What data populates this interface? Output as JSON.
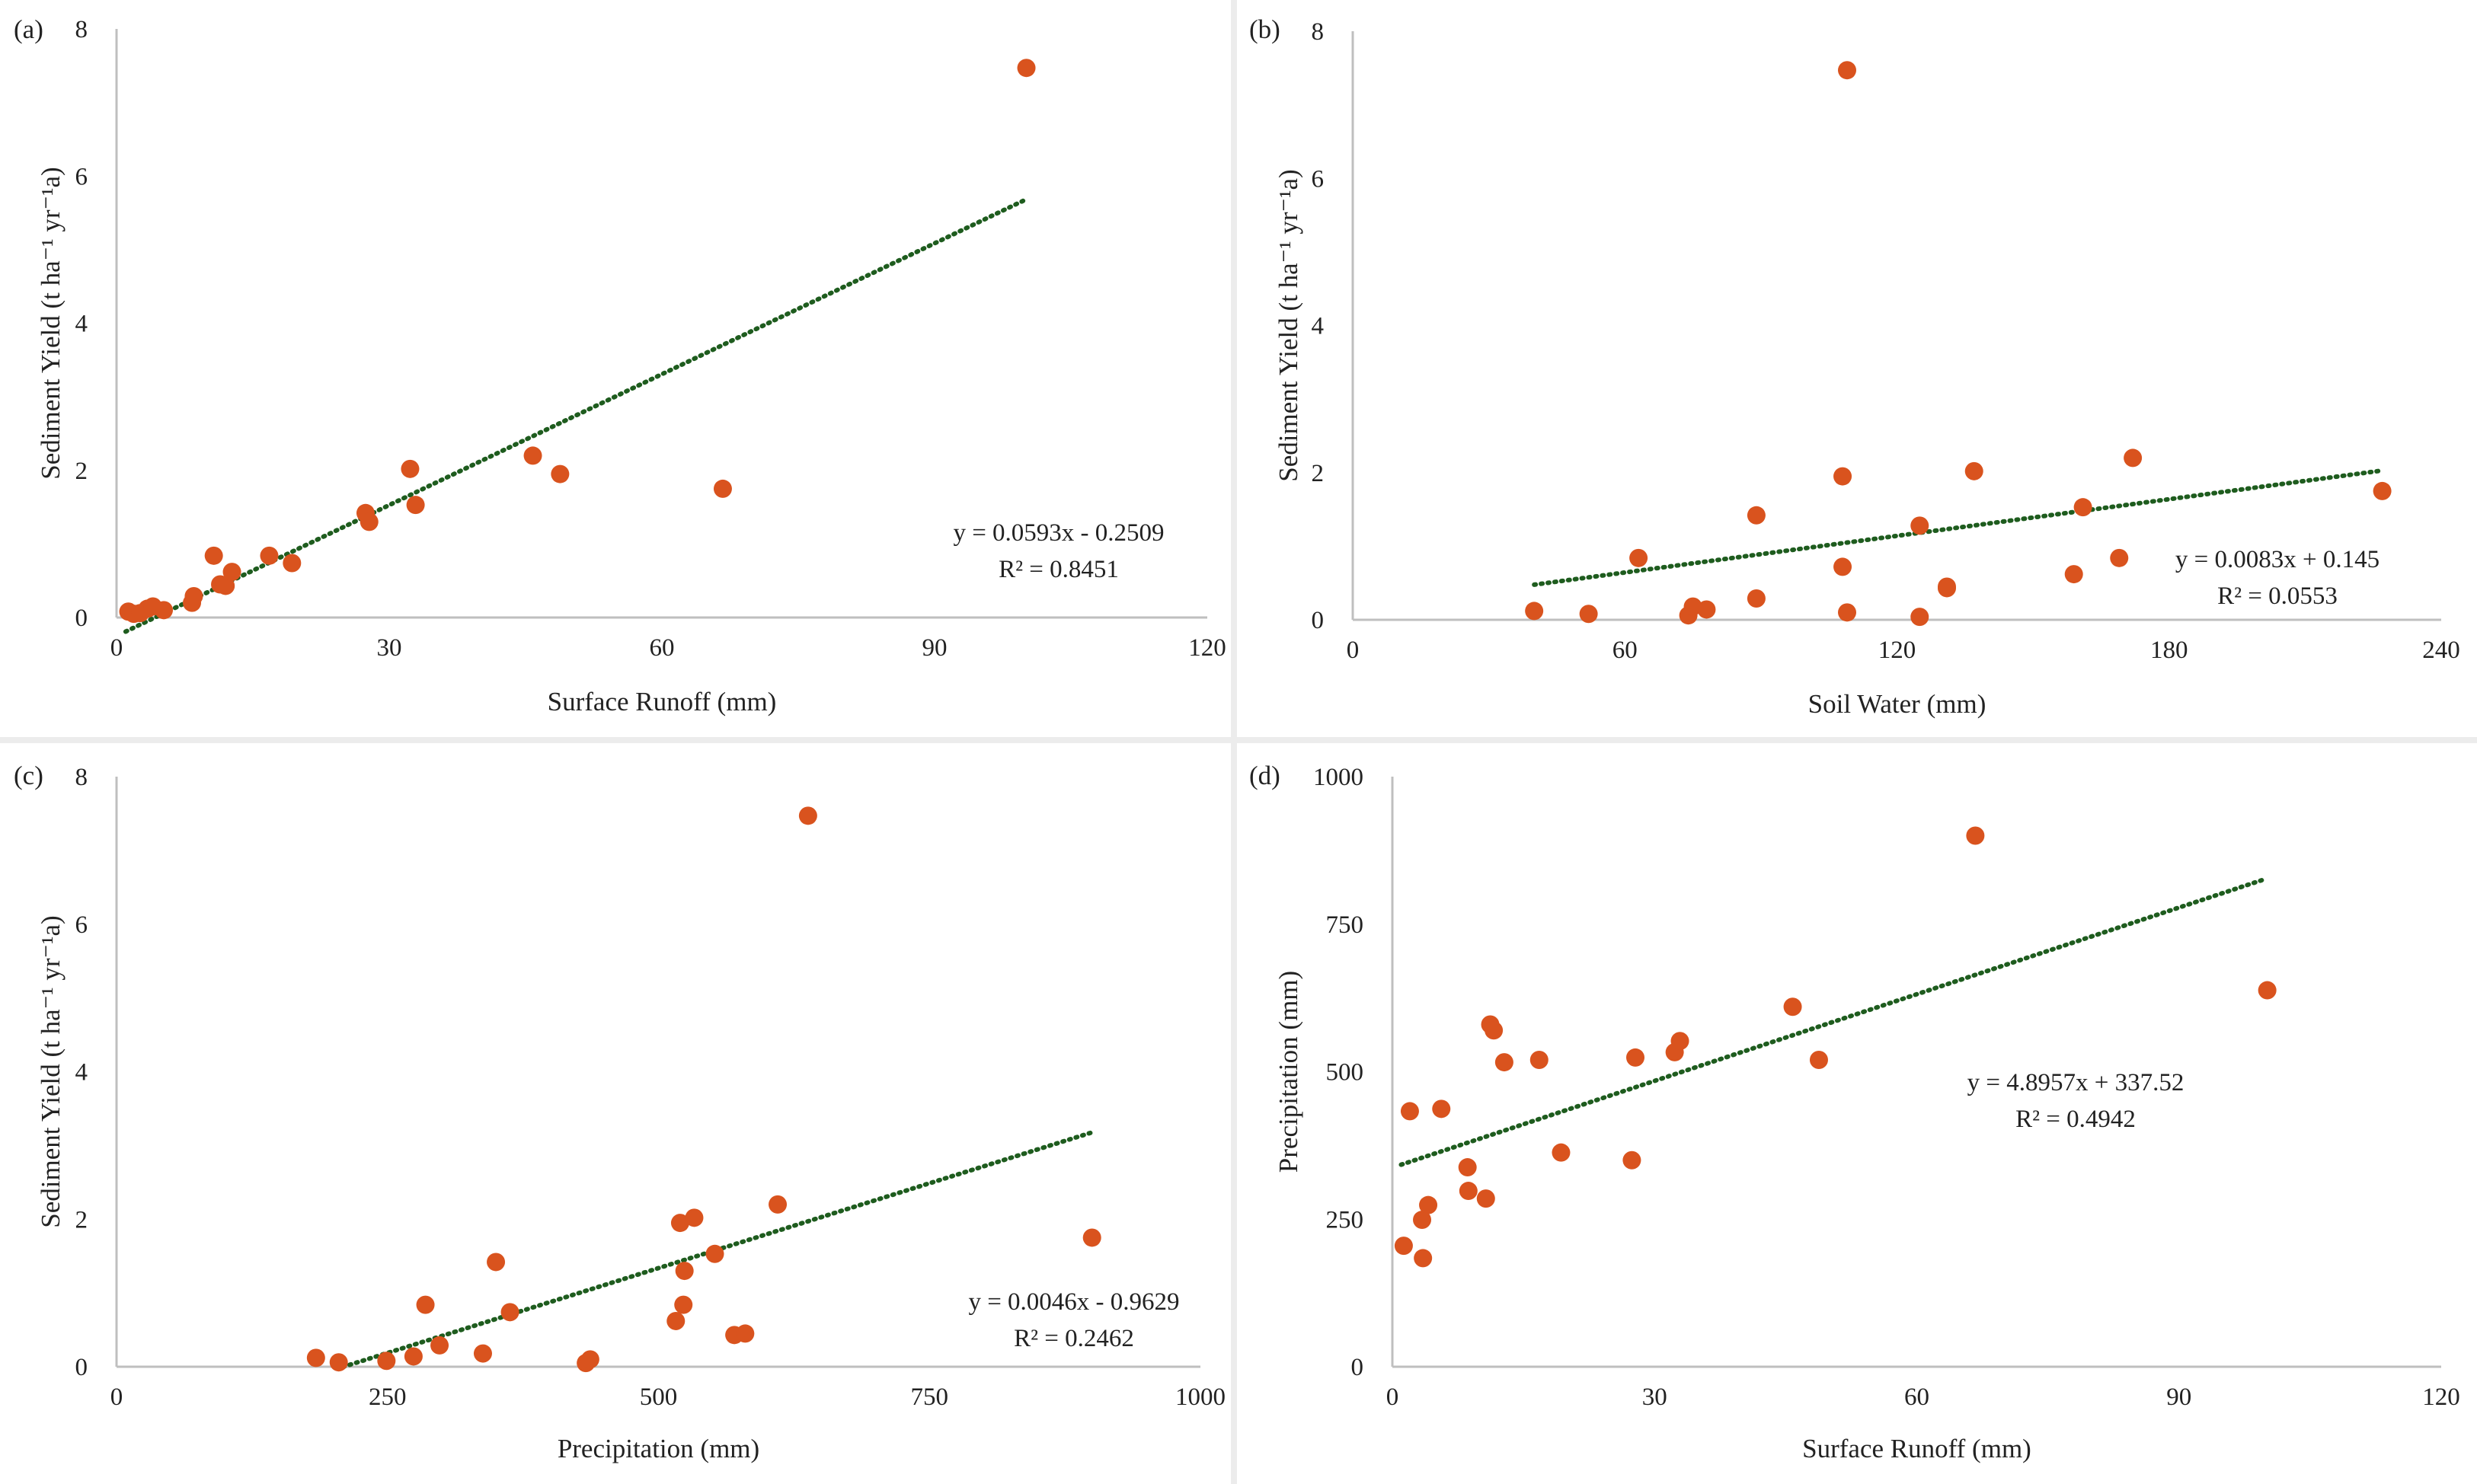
{
  "colors": {
    "point": "#d9531e",
    "trend": "#1e5c1e",
    "axis": "#bfbfbf",
    "text": "#222222"
  },
  "chart_data": [
    {
      "type": "scatter",
      "panel": "(a)",
      "title": "",
      "xlabel": "Surface Runoff (mm)",
      "ylabel": "Sediment Yield (t ha⁻¹ yr⁻¹a)",
      "xlim": [
        0,
        120
      ],
      "ylim": [
        0,
        8
      ],
      "xticks": [
        "0",
        "30",
        "60",
        "90",
        "120"
      ],
      "yticks": [
        "0",
        "2",
        "4",
        "6",
        "8"
      ],
      "grid": false,
      "legend": "none",
      "points": [
        [
          1.3,
          0.08
        ],
        [
          1.9,
          0.05
        ],
        [
          2.6,
          0.06
        ],
        [
          3.4,
          0.12
        ],
        [
          4.0,
          0.15
        ],
        [
          5.2,
          0.1
        ],
        [
          8.3,
          0.2
        ],
        [
          8.5,
          0.29
        ],
        [
          10.7,
          0.84
        ],
        [
          11.4,
          0.45
        ],
        [
          12.0,
          0.43
        ],
        [
          12.7,
          0.62
        ],
        [
          16.8,
          0.84
        ],
        [
          19.3,
          0.74
        ],
        [
          27.4,
          1.42
        ],
        [
          27.8,
          1.3
        ],
        [
          32.3,
          2.02
        ],
        [
          32.9,
          1.53
        ],
        [
          45.8,
          2.2
        ],
        [
          48.8,
          1.95
        ],
        [
          66.7,
          1.75
        ],
        [
          100.1,
          7.47
        ]
      ],
      "trendline": {
        "x": [
          1,
          100
        ],
        "slope": 0.0593,
        "intercept": -0.2509
      },
      "equation": "y = 0.0593x - 0.2509",
      "r2": "R² = 0.8451"
    },
    {
      "type": "scatter",
      "panel": "(b)",
      "title": "",
      "xlabel": "Soil Water (mm)",
      "ylabel": "Sediment Yield (t ha⁻¹ yr⁻¹a)",
      "xlim": [
        0,
        240
      ],
      "ylim": [
        0,
        8
      ],
      "xticks": [
        "0",
        "60",
        "120",
        "180",
        "240"
      ],
      "yticks": [
        "0",
        "2",
        "4",
        "6",
        "8"
      ],
      "grid": false,
      "legend": "none",
      "points": [
        [
          40,
          0.12
        ],
        [
          52,
          0.08
        ],
        [
          63,
          0.84
        ],
        [
          74,
          0.06
        ],
        [
          75,
          0.18
        ],
        [
          78,
          0.14
        ],
        [
          89,
          0.29
        ],
        [
          89,
          1.42
        ],
        [
          108,
          0.72
        ],
        [
          108,
          1.95
        ],
        [
          109,
          0.1
        ],
        [
          109,
          7.47
        ],
        [
          125,
          1.28
        ],
        [
          125,
          0.04
        ],
        [
          131,
          0.43
        ],
        [
          131,
          0.45
        ],
        [
          137,
          2.02
        ],
        [
          159,
          0.62
        ],
        [
          161,
          1.53
        ],
        [
          169,
          0.84
        ],
        [
          172,
          2.2
        ],
        [
          227,
          1.75
        ]
      ],
      "trendline": {
        "x": [
          40,
          227
        ],
        "slope": 0.0083,
        "intercept": 0.145
      },
      "equation": "y = 0.0083x + 0.145",
      "r2": "R² = 0.0553"
    },
    {
      "type": "scatter",
      "panel": "(c)",
      "title": "",
      "xlabel": "Precipitation (mm)",
      "ylabel": "Sediment Yield (t ha⁻¹ yr⁻¹a)",
      "xlim": [
        0,
        1000
      ],
      "ylim": [
        0,
        8
      ],
      "xticks": [
        "0",
        "250",
        "500",
        "750",
        "1000"
      ],
      "yticks": [
        "0",
        "2",
        "4",
        "6",
        "8"
      ],
      "grid": false,
      "legend": "none",
      "points": [
        [
          184,
          0.12
        ],
        [
          205,
          0.06
        ],
        [
          249,
          0.08
        ],
        [
          274,
          0.14
        ],
        [
          285,
          0.84
        ],
        [
          298,
          0.29
        ],
        [
          338,
          0.18
        ],
        [
          350,
          1.42
        ],
        [
          363,
          0.74
        ],
        [
          433,
          0.05
        ],
        [
          437,
          0.1
        ],
        [
          516,
          0.62
        ],
        [
          520,
          1.95
        ],
        [
          523,
          0.84
        ],
        [
          524,
          1.3
        ],
        [
          533,
          2.02
        ],
        [
          552,
          1.53
        ],
        [
          570,
          0.43
        ],
        [
          580,
          0.45
        ],
        [
          610,
          2.2
        ],
        [
          638,
          7.47
        ],
        [
          900,
          1.75
        ]
      ],
      "trendline": {
        "x": [
          209,
          900
        ],
        "slope": 0.0046,
        "intercept": -0.9629
      },
      "equation": "y = 0.0046x - 0.9629",
      "r2": "R² = 0.2462"
    },
    {
      "type": "scatter",
      "panel": "(d)",
      "title": "",
      "xlabel": "Surface Runoff (mm)",
      "ylabel": "Precipitation (mm)",
      "xlim": [
        0,
        120
      ],
      "ylim": [
        0,
        1000
      ],
      "xticks": [
        "0",
        "30",
        "60",
        "90",
        "120"
      ],
      "yticks": [
        "0",
        "250",
        "500",
        "750",
        "1000"
      ],
      "grid": false,
      "legend": "none",
      "points": [
        [
          1.3,
          205
        ],
        [
          2.0,
          433
        ],
        [
          3.4,
          249
        ],
        [
          3.5,
          184
        ],
        [
          4.1,
          274
        ],
        [
          5.6,
          437
        ],
        [
          8.6,
          338
        ],
        [
          8.7,
          298
        ],
        [
          10.7,
          285
        ],
        [
          11.2,
          580
        ],
        [
          11.6,
          570
        ],
        [
          12.8,
          516
        ],
        [
          16.8,
          520
        ],
        [
          19.3,
          363
        ],
        [
          27.4,
          350
        ],
        [
          27.8,
          524
        ],
        [
          32.3,
          533
        ],
        [
          32.9,
          552
        ],
        [
          45.8,
          610
        ],
        [
          48.8,
          520
        ],
        [
          66.7,
          900
        ],
        [
          100.1,
          638
        ]
      ],
      "trendline": {
        "x": [
          1,
          100
        ],
        "slope": 4.8957,
        "intercept": 337.52
      },
      "equation": "y = 4.8957x + 337.52",
      "r2": "R² = 0.4942"
    }
  ]
}
